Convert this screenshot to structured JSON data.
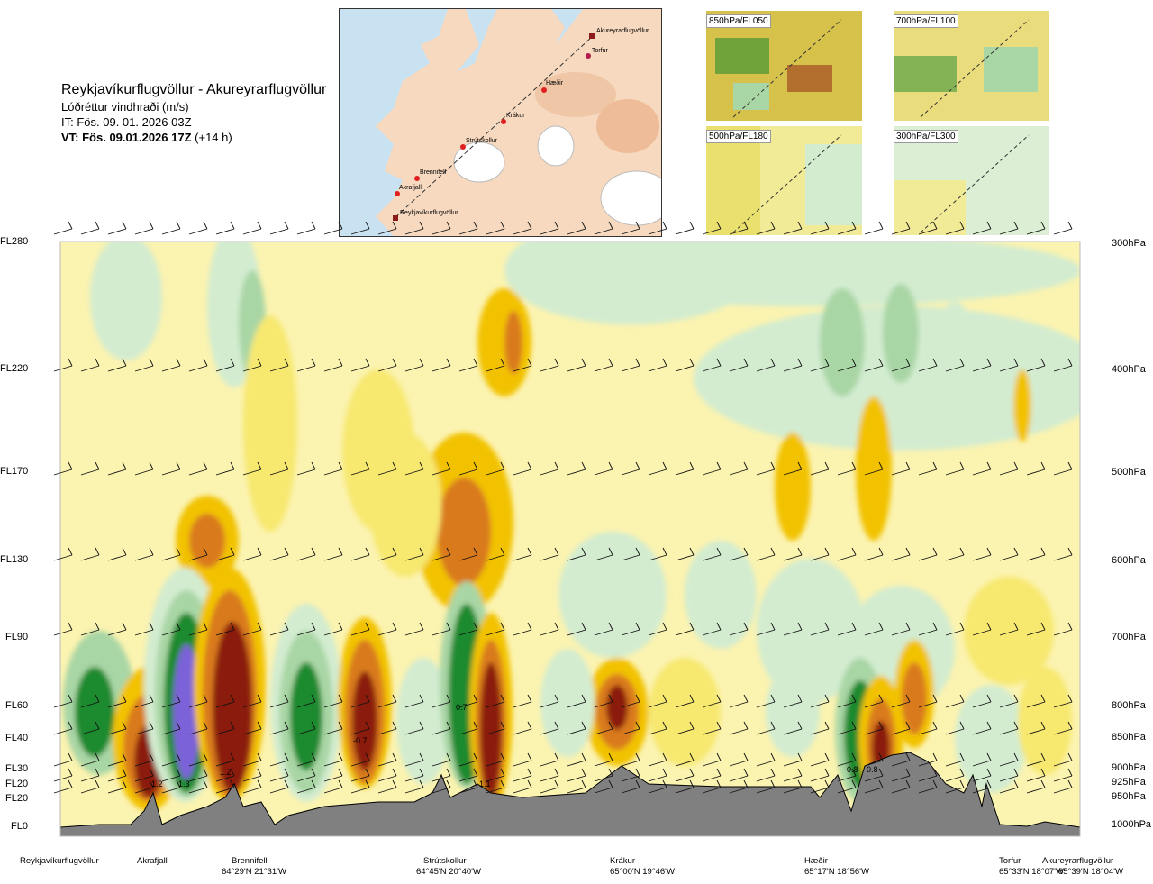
{
  "header": {
    "title": "Reykjavíkurflugvöllur - Akureyrarflugvöllur",
    "subtitle": "Lóðréttur vindhraði (m/s)",
    "issue_time": "IT: Fös. 09. 01. 2026 03Z",
    "valid_time_bold": "VT: Fös. 09.01.2026 17Z",
    "valid_time_offset": "(+14 h)"
  },
  "route_map": {
    "waypoints": [
      {
        "name": "Akureyrarflugvöllur"
      },
      {
        "name": "Torfur"
      },
      {
        "name": "Hæðir"
      },
      {
        "name": "Krákur"
      },
      {
        "name": "Strútskollur"
      },
      {
        "name": "Brennifell"
      },
      {
        "name": "Akrafjall"
      },
      {
        "name": "Reykjavíkurflugvöllur"
      }
    ]
  },
  "inset_maps": [
    {
      "label": "850hPa/FL050"
    },
    {
      "label": "700hPa/FL100"
    },
    {
      "label": "500hPa/FL180"
    },
    {
      "label": "300hPa/FL300"
    }
  ],
  "levels_left": [
    "FL280",
    "FL220",
    "FL170",
    "FL130",
    "FL90",
    "FL60",
    "FL40",
    "FL30",
    "FL20",
    "FL20",
    "FL0"
  ],
  "levels_right": [
    "300hPa",
    "400hPa",
    "500hPa",
    "600hPa",
    "700hPa",
    "800hPa",
    "850hPa",
    "900hPa",
    "925hPa",
    "950hPa",
    "1000hPa"
  ],
  "value_labels": [
    "1.2",
    "1.3",
    "1.2",
    "-0.7",
    "0.7",
    "1.1",
    "0.8",
    "0.8"
  ],
  "locations": [
    {
      "name": "Reykjavíkurflugvöllur",
      "coord": ""
    },
    {
      "name": "Akrafjall",
      "coord": ""
    },
    {
      "name": "Brennifell",
      "coord": "64°29'N 21°31'W"
    },
    {
      "name": "Strútskollur",
      "coord": "64°45'N 20°40'W"
    },
    {
      "name": "Krákur",
      "coord": "65°00'N 19°46'W"
    },
    {
      "name": "Hæðir",
      "coord": "65°17'N 18°56'W"
    },
    {
      "name": "Torfur",
      "coord": "65°33'N 18°07'W"
    },
    {
      "name": "Akureyrarflugvöllur",
      "coord": "65°39'N 18°04'W"
    }
  ],
  "colors": {
    "strong_down": "#8b1a10",
    "down": "#d97a1a",
    "weak_down": "#f2c200",
    "slight_down": "#f7e870",
    "neutral": "#fbf3b0",
    "slight_up": "#d3ecd0",
    "up": "#a9d6a5",
    "strong_up": "#1f8a2f",
    "very_strong_up": "#7b62d8",
    "terrain": "#808080"
  }
}
